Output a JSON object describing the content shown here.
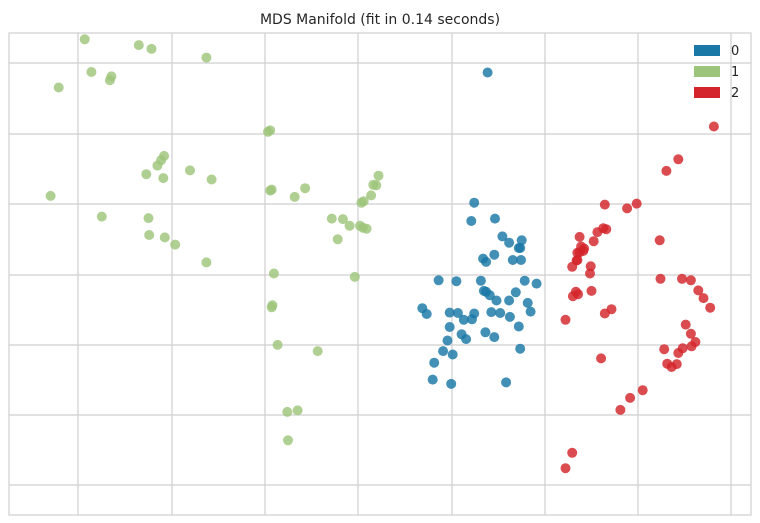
{
  "chart_data": {
    "type": "scatter",
    "title": "MDS Manifold (fit in 0.14 seconds)",
    "xlabel": "",
    "ylabel": "",
    "xlim": [
      0,
      100
    ],
    "ylim": [
      0,
      100
    ],
    "grid": true,
    "tick_labels": false,
    "legend_placement": "top-right",
    "series": [
      {
        "name": "0",
        "color": "#1a78a6",
        "points": [
          [
            64.5,
            91.8
          ],
          [
            62.7,
            64.8
          ],
          [
            62.3,
            61.0
          ],
          [
            65.5,
            61.5
          ],
          [
            66.5,
            57.8
          ],
          [
            69.1,
            57.0
          ],
          [
            68.7,
            55.4
          ],
          [
            67.4,
            56.5
          ],
          [
            68.9,
            55.4
          ],
          [
            65.4,
            54.0
          ],
          [
            63.9,
            53.2
          ],
          [
            64.3,
            52.5
          ],
          [
            67.9,
            52.9
          ],
          [
            69.0,
            52.9
          ],
          [
            57.9,
            48.7
          ],
          [
            60.3,
            48.5
          ],
          [
            63.6,
            48.6
          ],
          [
            69.5,
            48.6
          ],
          [
            71.1,
            48.0
          ],
          [
            64.0,
            46.5
          ],
          [
            64.3,
            46.3
          ],
          [
            68.3,
            46.2
          ],
          [
            64.8,
            45.6
          ],
          [
            65.7,
            44.5
          ],
          [
            67.4,
            44.5
          ],
          [
            69.9,
            44.0
          ],
          [
            55.7,
            42.9
          ],
          [
            56.3,
            41.7
          ],
          [
            59.4,
            42.0
          ],
          [
            60.5,
            41.9
          ],
          [
            62.7,
            41.8
          ],
          [
            61.3,
            40.5
          ],
          [
            62.4,
            40.6
          ],
          [
            65.0,
            42.1
          ],
          [
            66.2,
            41.9
          ],
          [
            67.5,
            41.1
          ],
          [
            70.3,
            42.2
          ],
          [
            59.4,
            39.0
          ],
          [
            68.7,
            39.1
          ],
          [
            61.0,
            37.5
          ],
          [
            64.2,
            37.9
          ],
          [
            65.4,
            36.9
          ],
          [
            59.1,
            36.2
          ],
          [
            61.6,
            36.5
          ],
          [
            68.9,
            34.5
          ],
          [
            58.5,
            34.0
          ],
          [
            59.8,
            33.3
          ],
          [
            57.3,
            31.6
          ],
          [
            57.1,
            28.1
          ],
          [
            59.6,
            27.2
          ],
          [
            67.0,
            27.5
          ]
        ]
      },
      {
        "name": "1",
        "color": "#9dc47b",
        "points": [
          [
            10.2,
            98.7
          ],
          [
            17.5,
            97.5
          ],
          [
            19.2,
            96.7
          ],
          [
            26.6,
            94.9
          ],
          [
            11.1,
            91.9
          ],
          [
            13.8,
            91.0
          ],
          [
            13.6,
            90.2
          ],
          [
            6.7,
            88.7
          ],
          [
            34.9,
            79.5
          ],
          [
            35.2,
            79.8
          ],
          [
            20.9,
            74.5
          ],
          [
            20.5,
            73.6
          ],
          [
            20.0,
            72.5
          ],
          [
            24.4,
            71.5
          ],
          [
            18.5,
            70.7
          ],
          [
            20.8,
            69.9
          ],
          [
            27.3,
            69.6
          ],
          [
            49.8,
            70.4
          ],
          [
            49.5,
            68.4
          ],
          [
            49.1,
            68.5
          ],
          [
            35.4,
            67.5
          ],
          [
            35.2,
            67.3
          ],
          [
            39.9,
            67.8
          ],
          [
            48.8,
            66.3
          ],
          [
            38.5,
            66.0
          ],
          [
            5.6,
            66.2
          ],
          [
            47.8,
            65.1
          ],
          [
            47.5,
            64.8
          ],
          [
            12.5,
            61.9
          ],
          [
            18.8,
            61.6
          ],
          [
            43.5,
            61.5
          ],
          [
            45.0,
            61.4
          ],
          [
            45.9,
            60.0
          ],
          [
            47.3,
            60.0
          ],
          [
            48.2,
            59.4
          ],
          [
            47.7,
            59.6
          ],
          [
            18.9,
            58.1
          ],
          [
            21.0,
            57.6
          ],
          [
            44.3,
            57.2
          ],
          [
            22.4,
            56.1
          ],
          [
            26.6,
            52.4
          ],
          [
            35.7,
            50.1
          ],
          [
            46.6,
            49.4
          ],
          [
            35.4,
            43.1
          ],
          [
            35.5,
            43.5
          ],
          [
            36.2,
            35.3
          ],
          [
            41.6,
            34.0
          ],
          [
            37.5,
            21.4
          ],
          [
            38.9,
            21.7
          ],
          [
            37.6,
            15.5
          ]
        ]
      },
      {
        "name": "2",
        "color": "#d3252b",
        "points": [
          [
            95.0,
            80.6
          ],
          [
            90.2,
            73.8
          ],
          [
            88.6,
            71.4
          ],
          [
            80.3,
            64.4
          ],
          [
            84.6,
            64.6
          ],
          [
            83.3,
            63.6
          ],
          [
            80.1,
            59.5
          ],
          [
            80.5,
            59.3
          ],
          [
            79.3,
            58.7
          ],
          [
            78.8,
            56.8
          ],
          [
            76.9,
            57.7
          ],
          [
            87.7,
            57.0
          ],
          [
            77.5,
            55.3
          ],
          [
            77.1,
            55.7
          ],
          [
            77.4,
            54.8
          ],
          [
            76.6,
            54.4
          ],
          [
            76.9,
            54.5
          ],
          [
            76.5,
            52.8
          ],
          [
            76.6,
            52.9
          ],
          [
            78.4,
            51.6
          ],
          [
            75.9,
            51.5
          ],
          [
            78.3,
            50.1
          ],
          [
            87.8,
            49.0
          ],
          [
            90.7,
            49.0
          ],
          [
            91.9,
            48.7
          ],
          [
            76.7,
            45.8
          ],
          [
            76.4,
            46.3
          ],
          [
            78.5,
            46.5
          ],
          [
            76.0,
            45.4
          ],
          [
            81.2,
            42.7
          ],
          [
            92.9,
            46.6
          ],
          [
            93.6,
            45.0
          ],
          [
            94.5,
            43.0
          ],
          [
            80.3,
            41.8
          ],
          [
            75.0,
            40.5
          ],
          [
            91.2,
            39.5
          ],
          [
            91.9,
            37.6
          ],
          [
            92.5,
            35.9
          ],
          [
            92.0,
            35.0
          ],
          [
            90.8,
            34.6
          ],
          [
            90.2,
            33.6
          ],
          [
            88.3,
            34.4
          ],
          [
            79.8,
            32.5
          ],
          [
            88.7,
            31.4
          ],
          [
            89.3,
            30.7
          ],
          [
            90.0,
            31.3
          ],
          [
            85.4,
            25.9
          ],
          [
            83.7,
            24.3
          ],
          [
            82.4,
            21.8
          ],
          [
            75.9,
            12.9
          ],
          [
            75.0,
            9.7
          ]
        ]
      }
    ]
  }
}
